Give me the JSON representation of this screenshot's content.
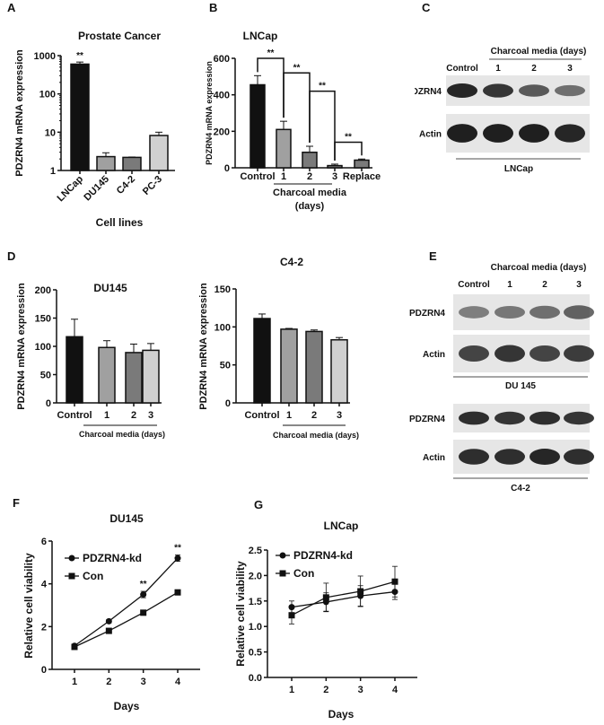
{
  "panel_labels": [
    "A",
    "B",
    "C",
    "D",
    "E",
    "F",
    "G"
  ],
  "chart_data": [
    {
      "id": "A",
      "type": "bar",
      "title": "Prostate Cancer",
      "xlabel": "Cell lines",
      "ylabel": "PDZRN4 mRNA expression",
      "yscale": "log",
      "ylim": [
        1,
        1000
      ],
      "yticks": [
        "1",
        "10",
        "100",
        "1000"
      ],
      "categories": [
        "LNCap",
        "DU145",
        "C4-2",
        "PC-3"
      ],
      "values": [
        600,
        2.3,
        2.2,
        8.2
      ],
      "errors_upper": [
        680,
        2.9,
        2.25,
        10
      ],
      "colors": [
        "#111111",
        "#a0a0a0",
        "#7a7a7a",
        "#d0d0d0"
      ],
      "annotations": [
        {
          "category": "LNCap",
          "text": "**"
        }
      ]
    },
    {
      "id": "B",
      "type": "bar",
      "title": "LNCap",
      "xlabel": "Charcoal media (days)",
      "ylabel": "PDZRN4 mRNA expression",
      "ylim": [
        0,
        600
      ],
      "yticks": [
        "0",
        "200",
        "400",
        "600"
      ],
      "categories": [
        "Control",
        "1",
        "2",
        "3",
        "Replace"
      ],
      "values": [
        455,
        210,
        85,
        12,
        42
      ],
      "errors_upper": [
        505,
        255,
        118,
        20,
        48
      ],
      "colors": [
        "#111111",
        "#a0a0a0",
        "#7a7a7a",
        "#7a7a7a",
        "#7a7a7a"
      ],
      "group_label_line1": "Charcoal media",
      "group_label_line2": "(days)",
      "brackets": [
        {
          "from": "Control",
          "to": "1",
          "level": 600,
          "text": "**"
        },
        {
          "from": "1",
          "to": "2",
          "level": 520,
          "text": "**"
        },
        {
          "from": "2",
          "to": "3",
          "level": 420,
          "text": "**"
        },
        {
          "from": "3",
          "to": "Replace",
          "level": 140,
          "text": "**"
        }
      ]
    },
    {
      "id": "D1",
      "type": "bar",
      "title": "DU145",
      "xlabel": "Charcoal media (days)",
      "ylabel": "PDZRN4 mRNA expression",
      "ylim": [
        0,
        200
      ],
      "yticks": [
        "0",
        "50",
        "100",
        "150",
        "200"
      ],
      "categories": [
        "Control",
        "1",
        "2",
        "3"
      ],
      "values": [
        117,
        98,
        89,
        93
      ],
      "errors_upper": [
        148,
        110,
        104,
        105
      ],
      "colors": [
        "#111111",
        "#a0a0a0",
        "#7a7a7a",
        "#d0d0d0"
      ]
    },
    {
      "id": "D2",
      "type": "bar",
      "title": "C4-2",
      "xlabel": "Charcoal media (days)",
      "ylabel": "PDZRN4 mRNA expression",
      "ylim": [
        0,
        150
      ],
      "yticks": [
        "0",
        "50",
        "100",
        "150"
      ],
      "categories": [
        "Control",
        "1",
        "2",
        "3"
      ],
      "values": [
        111,
        97,
        94,
        83
      ],
      "errors_upper": [
        117,
        98,
        96,
        86
      ],
      "colors": [
        "#111111",
        "#a0a0a0",
        "#7a7a7a",
        "#d0d0d0"
      ]
    },
    {
      "id": "F",
      "type": "line",
      "title": "DU145",
      "xlabel": "Days",
      "ylabel": "Relative cell viability",
      "ylim": [
        0,
        6
      ],
      "yticks": [
        "0",
        "2",
        "4",
        "6"
      ],
      "x": [
        1,
        2,
        3,
        4
      ],
      "series": [
        {
          "name": "PDZRN4-kd",
          "marker": "circle",
          "values": [
            1.1,
            2.25,
            3.5,
            5.2
          ],
          "errors": [
            0.05,
            0.08,
            0.15,
            0.15
          ]
        },
        {
          "name": "Con",
          "marker": "square",
          "values": [
            1.05,
            1.8,
            2.65,
            3.6
          ],
          "errors": [
            0.05,
            0.12,
            0.1,
            0.08
          ]
        }
      ],
      "annotations": [
        {
          "x": 3,
          "text": "**"
        },
        {
          "x": 4,
          "text": "**"
        }
      ],
      "legend": "top-left"
    },
    {
      "id": "G",
      "type": "line",
      "title": "LNCap",
      "xlabel": "Days",
      "ylabel": "Relative cell viability",
      "ylim": [
        0,
        2.5
      ],
      "yticks": [
        "0.0",
        "0.5",
        "1.0",
        "1.5",
        "2.0",
        "2.5"
      ],
      "x": [
        1,
        2,
        3,
        4
      ],
      "series": [
        {
          "name": "PDZRN4-kd",
          "marker": "circle",
          "values": [
            1.38,
            1.48,
            1.6,
            1.68
          ],
          "errors": [
            0.12,
            0.18,
            0.2,
            0.15
          ]
        },
        {
          "name": "Con",
          "marker": "square",
          "values": [
            1.22,
            1.57,
            1.69,
            1.88
          ],
          "errors": [
            0.17,
            0.28,
            0.3,
            0.3
          ]
        }
      ],
      "legend": "top-left"
    }
  ],
  "blots": {
    "C": {
      "header": "Charcoal media (days)",
      "lanes": [
        "Control",
        "1",
        "2",
        "3"
      ],
      "rows": [
        {
          "label": "PDZRN4",
          "intensity": [
            0.95,
            0.85,
            0.6,
            0.45
          ]
        },
        {
          "label": "Actin",
          "intensity": [
            1,
            1,
            1,
            0.95
          ]
        }
      ],
      "cell_line": "LNCap"
    },
    "E": {
      "header": "Charcoal media (days)",
      "lanes": [
        "Control",
        "1",
        "2",
        "3"
      ],
      "groups": [
        {
          "cell_line": "DU 145",
          "rows": [
            {
              "label": "PDZRN4",
              "intensity": [
                0.35,
                0.4,
                0.45,
                0.55
              ]
            },
            {
              "label": "Actin",
              "intensity": [
                0.75,
                0.85,
                0.75,
                0.8
              ]
            }
          ]
        },
        {
          "cell_line": "C4-2",
          "rows": [
            {
              "label": "PDZRN4",
              "intensity": [
                0.9,
                0.85,
                0.9,
                0.85
              ]
            },
            {
              "label": "Actin",
              "intensity": [
                0.9,
                0.9,
                0.95,
                0.9
              ]
            }
          ]
        }
      ]
    }
  }
}
